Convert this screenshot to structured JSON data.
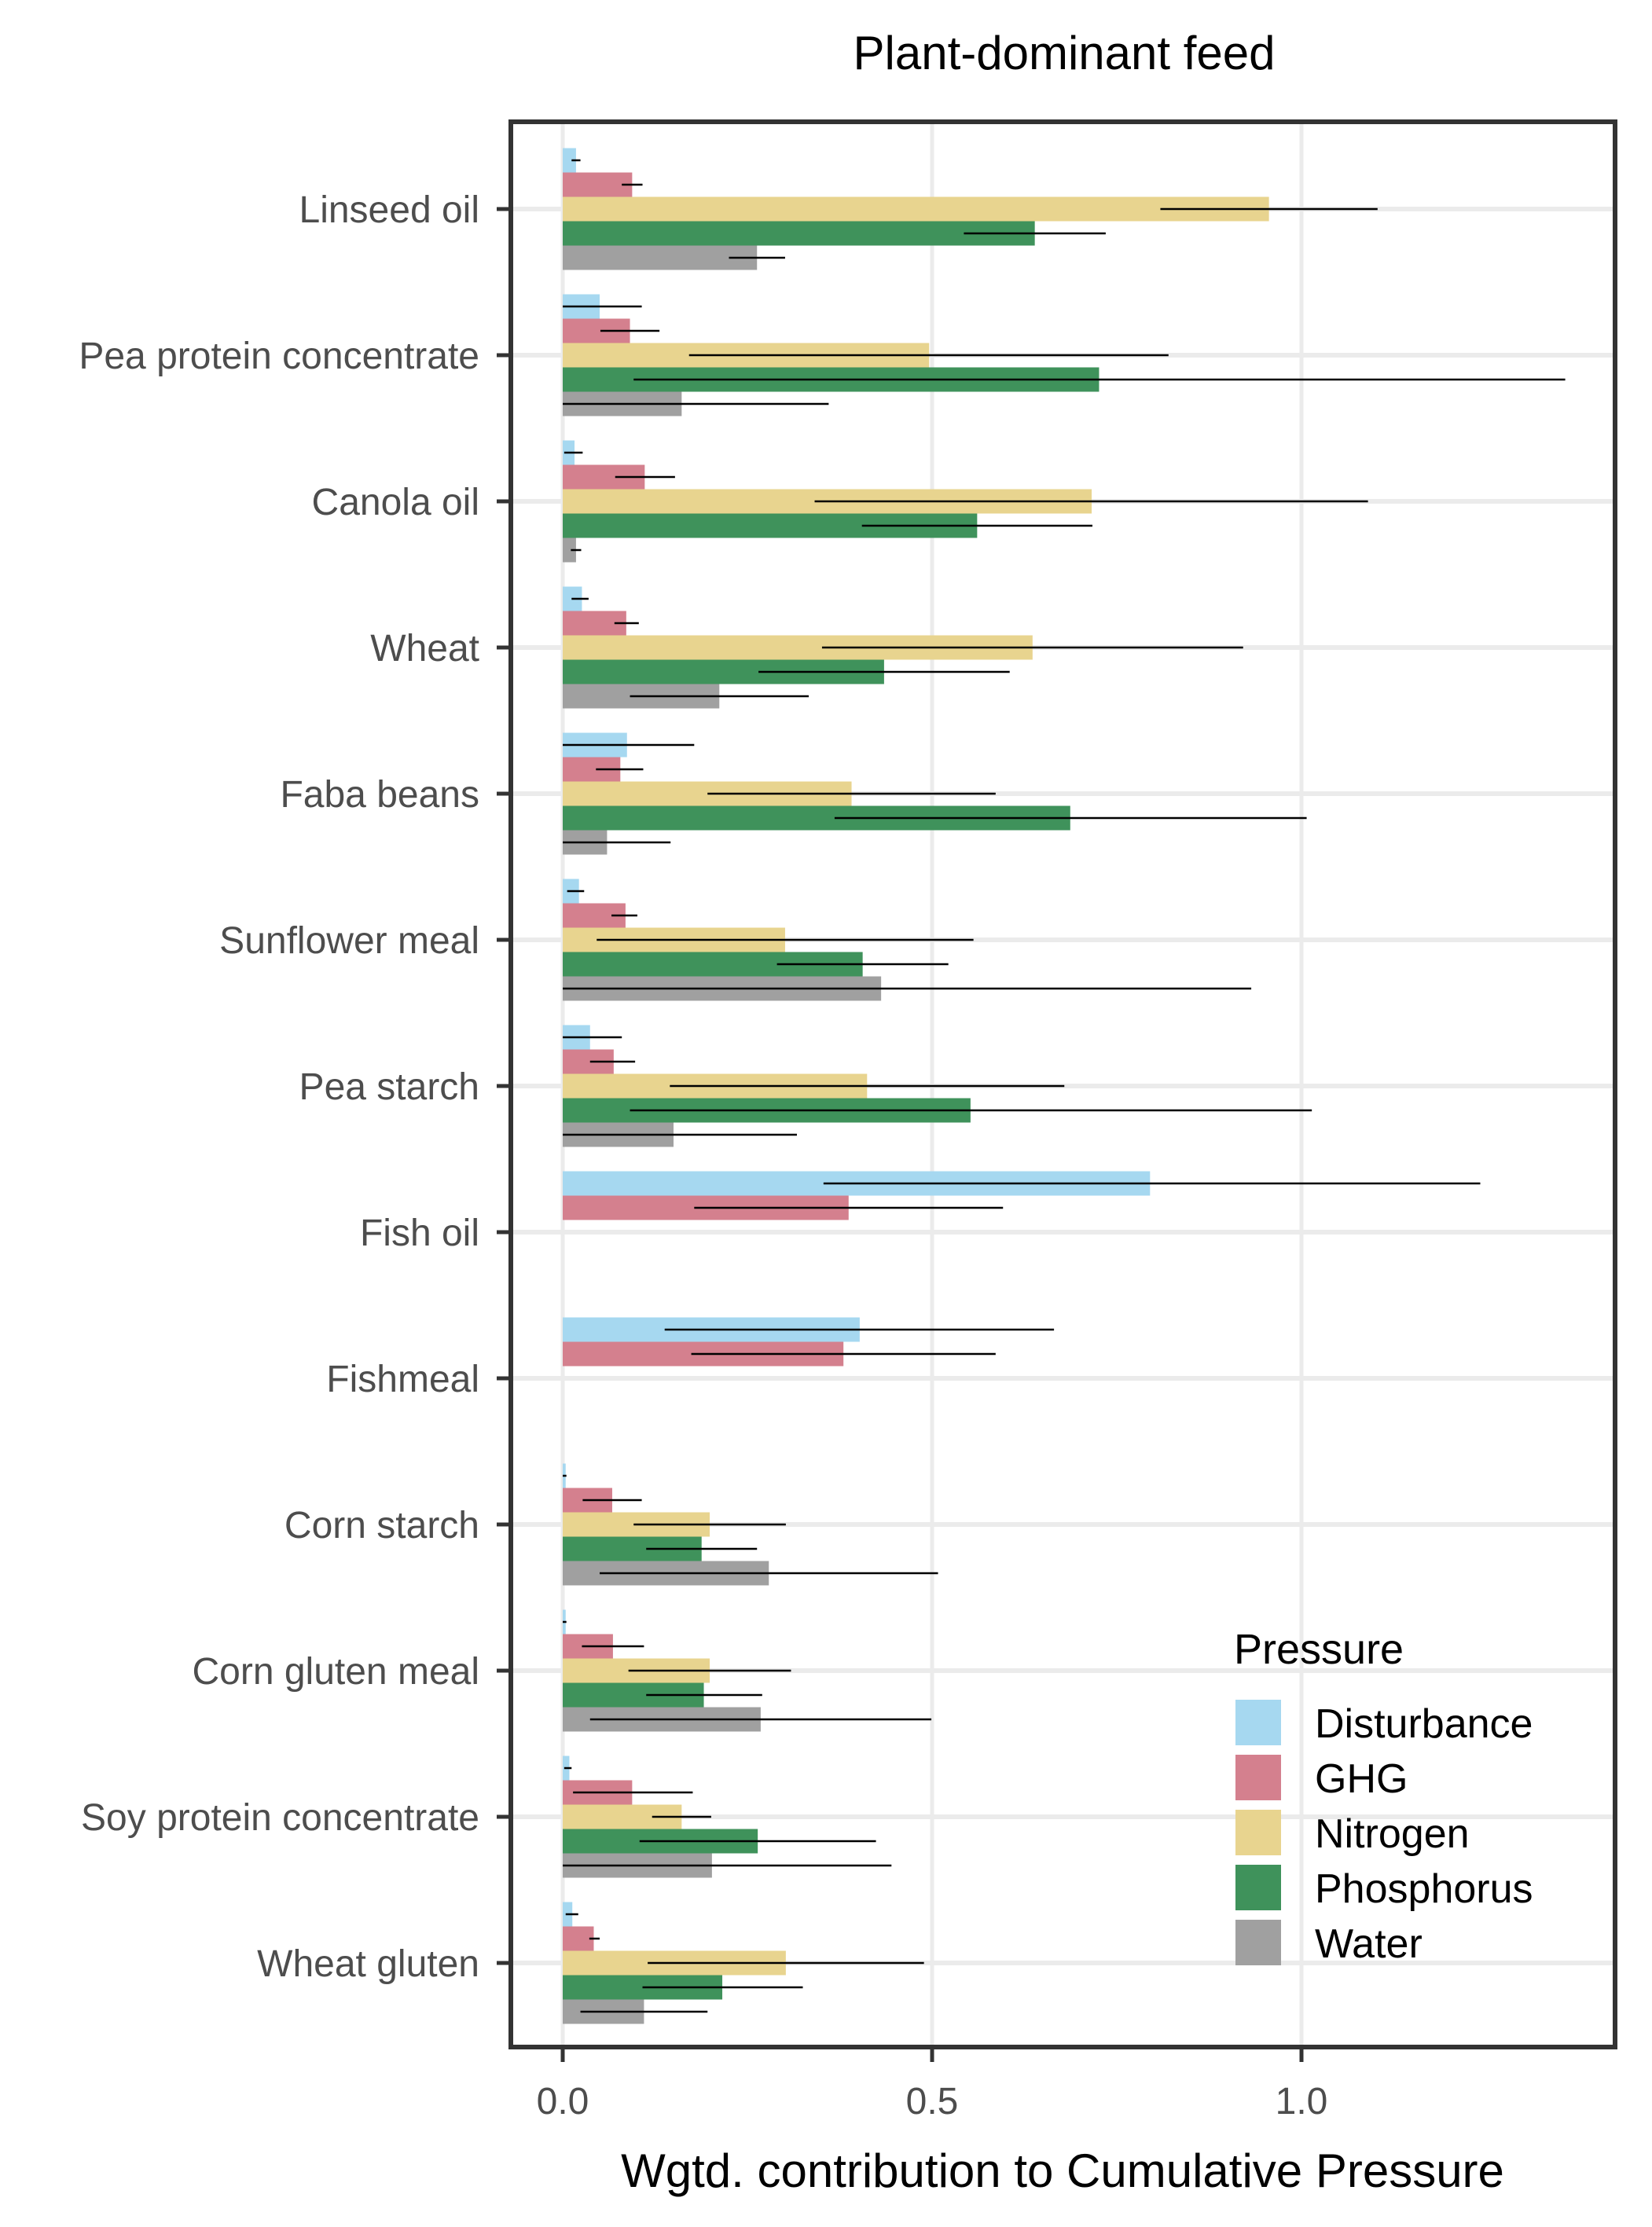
{
  "chart_data": {
    "type": "bar",
    "orientation": "horizontal",
    "title": "Plant-dominant feed",
    "xlabel": "Wgtd. contribution to Cumulative Pressure",
    "ylabel": "",
    "xlim": [
      -0.07,
      1.43
    ],
    "xticks": [
      0.0,
      0.5,
      1.0
    ],
    "xtick_labels": [
      "0.0",
      "0.5",
      "1.0"
    ],
    "grid": true,
    "legend": {
      "title": "Pressure",
      "position": "bottom-right"
    },
    "categories": [
      "Linseed oil",
      "Pea protein concentrate",
      "Canola oil",
      "Wheat",
      "Faba beans",
      "Sunflower meal",
      "Pea starch",
      "Fish oil",
      "Fishmeal",
      "Corn starch",
      "Corn gluten meal",
      "Soy protein concentrate",
      "Wheat gluten"
    ],
    "series": [
      {
        "name": "Disturbance",
        "color": "#A6D8F0",
        "values": [
          0.018,
          0.05,
          0.016,
          0.026,
          0.087,
          0.022,
          0.037,
          0.795,
          0.402,
          0.004,
          0.004,
          0.009,
          0.013
        ],
        "error_low": [
          0.012,
          0.0,
          0.002,
          0.012,
          0.0,
          0.006,
          0.0,
          0.353,
          0.138,
          0.0,
          0.0,
          0.002,
          0.004
        ],
        "error_high": [
          0.024,
          0.107,
          0.027,
          0.035,
          0.178,
          0.029,
          0.08,
          1.242,
          0.665,
          0.005,
          0.005,
          0.012,
          0.021
        ]
      },
      {
        "name": "GHG",
        "color": "#D4808E",
        "values": [
          0.094,
          0.091,
          0.111,
          0.086,
          0.078,
          0.085,
          0.069,
          0.387,
          0.38,
          0.067,
          0.068,
          0.094,
          0.042
        ],
        "error_low": [
          0.08,
          0.051,
          0.071,
          0.07,
          0.045,
          0.066,
          0.037,
          0.178,
          0.174,
          0.027,
          0.026,
          0.014,
          0.036
        ],
        "error_high": [
          0.108,
          0.131,
          0.152,
          0.103,
          0.109,
          0.101,
          0.098,
          0.596,
          0.586,
          0.107,
          0.11,
          0.176,
          0.05
        ]
      },
      {
        "name": "Nitrogen",
        "color": "#E8D48F",
        "values": [
          0.956,
          0.496,
          0.716,
          0.636,
          0.391,
          0.301,
          0.412,
          null,
          null,
          0.199,
          0.199,
          0.161,
          0.302
        ],
        "error_low": [
          0.809,
          0.171,
          0.341,
          0.351,
          0.196,
          0.046,
          0.145,
          null,
          null,
          0.096,
          0.089,
          0.121,
          0.115
        ],
        "error_high": [
          1.103,
          0.82,
          1.09,
          0.921,
          0.586,
          0.556,
          0.679,
          null,
          null,
          0.302,
          0.309,
          0.201,
          0.489
        ]
      },
      {
        "name": "Phosphorus",
        "color": "#3F925B",
        "values": [
          0.639,
          0.726,
          0.561,
          0.435,
          0.687,
          0.406,
          0.552,
          null,
          null,
          0.188,
          0.191,
          0.264,
          0.216
        ],
        "error_low": [
          0.543,
          0.096,
          0.405,
          0.265,
          0.368,
          0.29,
          0.091,
          null,
          null,
          0.113,
          0.113,
          0.104,
          0.108
        ],
        "error_high": [
          0.735,
          1.357,
          0.717,
          0.605,
          1.007,
          0.522,
          1.014,
          null,
          null,
          0.263,
          0.27,
          0.424,
          0.325
        ]
      },
      {
        "name": "Water",
        "color": "#A0A0A0",
        "values": [
          0.263,
          0.161,
          0.018,
          0.212,
          0.06,
          0.431,
          0.15,
          null,
          null,
          0.279,
          0.268,
          0.202,
          0.11
        ],
        "error_low": [
          0.225,
          0.0,
          0.011,
          0.091,
          0.0,
          0.0,
          0.0,
          null,
          null,
          0.05,
          0.037,
          0.0,
          0.024
        ],
        "error_high": [
          0.301,
          0.36,
          0.025,
          0.333,
          0.146,
          0.932,
          0.317,
          null,
          null,
          0.508,
          0.499,
          0.445,
          0.196
        ]
      }
    ]
  }
}
